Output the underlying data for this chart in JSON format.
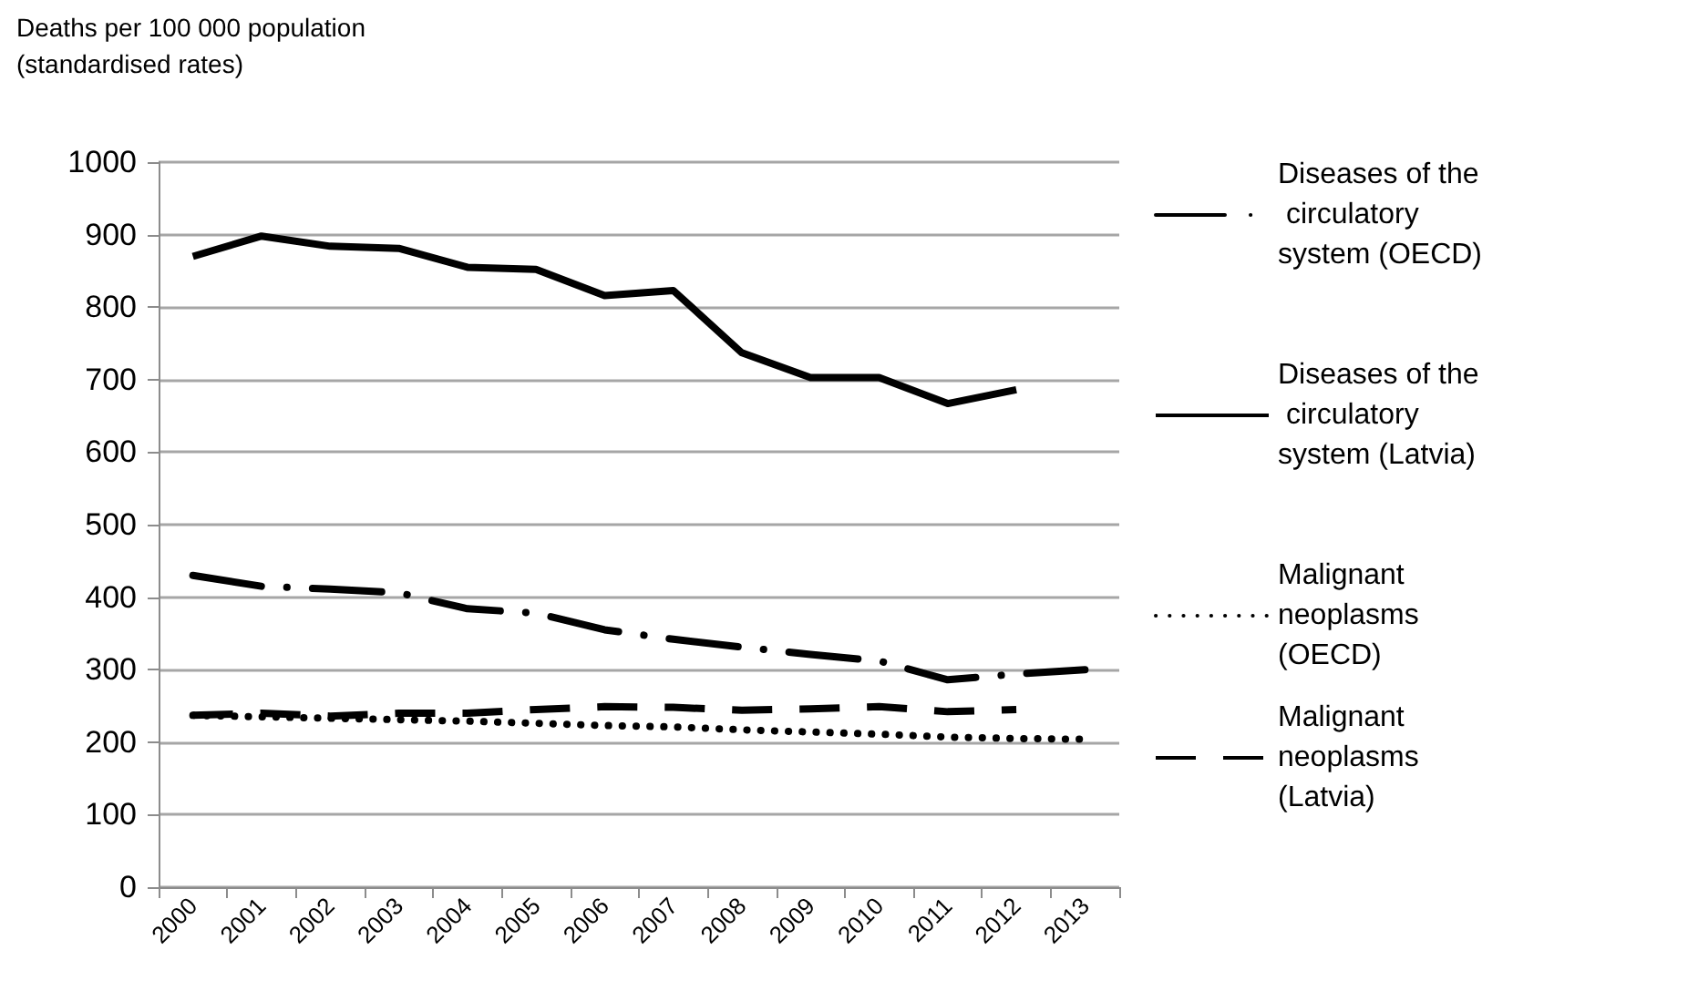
{
  "chart_data": {
    "type": "line",
    "ylabel": "Deaths per 100 000 population (standardised rates)",
    "categories": [
      "2000",
      "2001",
      "2002",
      "2003",
      "2004",
      "2005",
      "2006",
      "2007",
      "2008",
      "2009",
      "2010",
      "2011",
      "2012",
      "2013"
    ],
    "ylim": [
      0,
      1000
    ],
    "yticks": [
      0,
      100,
      200,
      300,
      400,
      500,
      600,
      700,
      800,
      900,
      1000
    ],
    "grid": "y",
    "legend": "right",
    "marker": "none",
    "series": [
      {
        "name": "Diseases of the circulatory system (OECD)",
        "color": "#000000",
        "line_style": "dashdot",
        "values": [
          430,
          415,
          411,
          406,
          384,
          378,
          355,
          342,
          331,
          321,
          312,
          286,
          294,
          300
        ]
      },
      {
        "name": "Diseases of the circulatory system (Latvia)",
        "color": "#000000",
        "line_style": "solid",
        "values": [
          870,
          898,
          884,
          881,
          855,
          852,
          816,
          823,
          737,
          703,
          703,
          667,
          686,
          null
        ]
      },
      {
        "name": "Malignant neoplasms (OECD)",
        "color": "#000000",
        "line_style": "dotted",
        "values": [
          237,
          235,
          233,
          231,
          229,
          226,
          223,
          221,
          217,
          214,
          211,
          207,
          205,
          204
        ]
      },
      {
        "name": "Malignant neoplasms (Latvia)",
        "color": "#000000",
        "line_style": "dashed",
        "values": [
          237,
          240,
          236,
          240,
          240,
          245,
          249,
          248,
          244,
          246,
          249,
          242,
          245,
          null
        ]
      }
    ]
  }
}
